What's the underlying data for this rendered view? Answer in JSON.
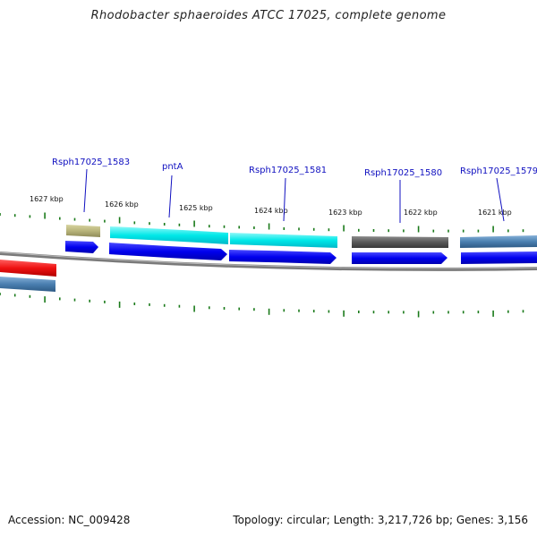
{
  "title": "Rhodobacter sphaeroides ATCC 17025, complete genome",
  "accession": "Accession: NC_009428",
  "summary": "Topology: circular; Length: 3,217,726 bp; Genes: 3,156",
  "kbp_labels": [
    "1627 kbp",
    "1626 kbp",
    "1625 kbp",
    "1624 kbp",
    "1623 kbp",
    "1622 kbp",
    "1621 kbp"
  ],
  "gene_labels": [
    "Rsph17025_1583",
    "pntA",
    "Rsph17025_1581",
    "Rsph17025_1580",
    "Rsph17025_1579"
  ],
  "colors": {
    "tick": "#1a7a1a",
    "backbone": "#808080",
    "cds": "#0000ee",
    "label": "#1010c0",
    "red_gene": "#ee1111",
    "steel_gene": "#4a7fb0",
    "olive_gene": "#b8b47a",
    "cyan_gene": "#00e8e8",
    "gray_gene": "#5a5a5a"
  }
}
